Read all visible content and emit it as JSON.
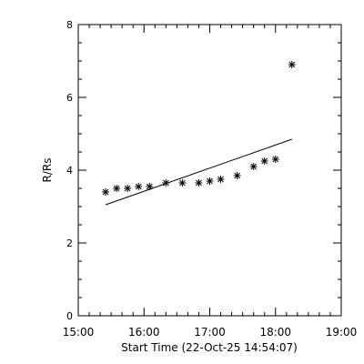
{
  "chart_data": {
    "type": "scatter",
    "xlabel": "Start Time (22-Oct-25 14:54:07)",
    "ylabel": "R/Rs",
    "xlim": [
      "15:00",
      "19:00"
    ],
    "ylim": [
      0,
      8
    ],
    "x_ticks": [
      "15:00",
      "16:00",
      "17:00",
      "18:00",
      "19:00"
    ],
    "y_ticks": [
      "0",
      "2",
      "4",
      "6",
      "8"
    ],
    "points": [
      {
        "x": "15:25",
        "y": 3.4
      },
      {
        "x": "15:35",
        "y": 3.5
      },
      {
        "x": "15:45",
        "y": 3.5
      },
      {
        "x": "15:55",
        "y": 3.55
      },
      {
        "x": "16:05",
        "y": 3.55
      },
      {
        "x": "16:20",
        "y": 3.65
      },
      {
        "x": "16:35",
        "y": 3.65
      },
      {
        "x": "16:50",
        "y": 3.65
      },
      {
        "x": "17:00",
        "y": 3.7
      },
      {
        "x": "17:10",
        "y": 3.75
      },
      {
        "x": "17:25",
        "y": 3.85
      },
      {
        "x": "17:40",
        "y": 4.1
      },
      {
        "x": "17:50",
        "y": 4.25
      },
      {
        "x": "18:00",
        "y": 4.3
      },
      {
        "x": "18:15",
        "y": 6.9
      }
    ],
    "fit_line": {
      "x": [
        "15:25",
        "18:15"
      ],
      "y": [
        3.05,
        4.85
      ]
    },
    "marker": "asterisk",
    "grid": false,
    "colors": {
      "foreground": "#000000",
      "background": "#ffffff"
    }
  }
}
